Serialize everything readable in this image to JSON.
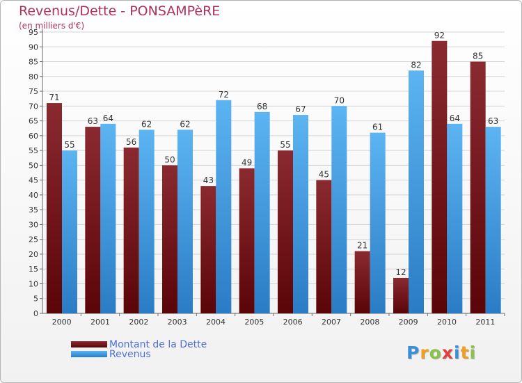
{
  "chart_data": {
    "type": "bar",
    "title": "Revenus/Dette - PONSAMPèRE",
    "subtitle": "(en milliers d'€)",
    "categories": [
      "2000",
      "2001",
      "2002",
      "2003",
      "2004",
      "2005",
      "2006",
      "2007",
      "2008",
      "2009",
      "2010",
      "2011"
    ],
    "series": [
      {
        "name": "Montant de la Dette",
        "values": [
          71,
          63,
          56,
          50,
          43,
          49,
          55,
          45,
          21,
          12,
          92,
          85
        ],
        "color": "#7b1a1f"
      },
      {
        "name": "Revenus",
        "values": [
          55,
          64,
          62,
          62,
          72,
          68,
          67,
          70,
          61,
          82,
          64,
          63
        ],
        "color": "#4aa3e6"
      }
    ],
    "ylim": [
      0,
      95
    ],
    "yticks": [
      0,
      5,
      10,
      15,
      20,
      25,
      30,
      35,
      40,
      45,
      50,
      55,
      60,
      65,
      70,
      75,
      80,
      85,
      90,
      95
    ],
    "grid": true,
    "legend_position": "bottom-left",
    "data_labels": true
  },
  "logo": {
    "letters": [
      "P",
      "r",
      "o",
      "x",
      "i",
      "t",
      "i"
    ],
    "colors": [
      "#3a8fd9",
      "#f0a020",
      "#8bc34a",
      "#e04040",
      "#3a8fd9",
      "#f0a020",
      "#8bc34a"
    ]
  }
}
